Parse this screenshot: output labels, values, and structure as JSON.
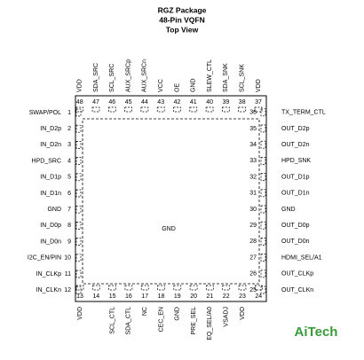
{
  "header": {
    "title": [
      "RGZ Package",
      "48-Pin VQFN",
      "Top View"
    ]
  },
  "pad_label": "GND",
  "watermark": "AiTech",
  "left_pins": [
    {
      "number": 1,
      "label": "SWAP/POL"
    },
    {
      "number": 2,
      "label": "IN_D2p"
    },
    {
      "number": 3,
      "label": "IN_D2n"
    },
    {
      "number": 4,
      "label": "HPD_SRC"
    },
    {
      "number": 5,
      "label": "IN_D1p"
    },
    {
      "number": 6,
      "label": "IN_D1n"
    },
    {
      "number": 7,
      "label": "GND"
    },
    {
      "number": 8,
      "label": "IN_D0p"
    },
    {
      "number": 9,
      "label": "IN_D0n"
    },
    {
      "number": 10,
      "label": "I2C_EN/PIN"
    },
    {
      "number": 11,
      "label": "IN_CLKp"
    },
    {
      "number": 12,
      "label": "IN_CLKn"
    }
  ],
  "bottom_pins": [
    {
      "number": 13,
      "label": "VDD"
    },
    {
      "number": 14
    },
    {
      "number": 15,
      "label": "SCL_CTL"
    },
    {
      "number": 16,
      "label": "SDA_CTL"
    },
    {
      "number": 17,
      "label": "NC"
    },
    {
      "number": 18,
      "label": "CEC_EN"
    },
    {
      "number": 19,
      "label": "GND"
    },
    {
      "number": 20,
      "label": "PRE_SEL"
    },
    {
      "number": 21,
      "label": "EQ_SEL/A0"
    },
    {
      "number": 22,
      "label": "VSADJ"
    },
    {
      "number": 23,
      "label": "VDD"
    },
    {
      "number": 24
    }
  ],
  "right_pins": [
    {
      "number": 25,
      "label": "OUT_CLKn"
    },
    {
      "number": 26,
      "label": "OUT_CLKp"
    },
    {
      "number": 27,
      "label": "HDMI_SEL/A1"
    },
    {
      "number": 28,
      "label": "OUT_D0n"
    },
    {
      "number": 29,
      "label": "OUT_D0p"
    },
    {
      "number": 30,
      "label": "GND"
    },
    {
      "number": 31,
      "label": "OUT_D1n"
    },
    {
      "number": 32,
      "label": "OUT_D1p"
    },
    {
      "number": 33,
      "label": "HPD_SNK"
    },
    {
      "number": 34,
      "label": "OUT_D2n"
    },
    {
      "number": 35,
      "label": "OUT_D2p"
    },
    {
      "number": 36,
      "label": "TX_TERM_CTL"
    }
  ],
  "top_pins": [
    {
      "number": 37,
      "label": "VDD"
    },
    {
      "number": 38,
      "label": "SCL_SNK"
    },
    {
      "number": 39,
      "label": "SDA_SNK"
    },
    {
      "number": 40,
      "label": "SLEW_CTL"
    },
    {
      "number": 41,
      "label": "GND"
    },
    {
      "number": 42,
      "label": "OE"
    },
    {
      "number": 43,
      "label": "VCC"
    },
    {
      "number": 44,
      "label": "AUX_SRCn"
    },
    {
      "number": 45,
      "label": "AUX_SRCp"
    },
    {
      "number": 46,
      "label": "SCL_SRC"
    },
    {
      "number": 47,
      "label": "SDA_SRC"
    },
    {
      "number": 48,
      "label": "VDD"
    }
  ]
}
